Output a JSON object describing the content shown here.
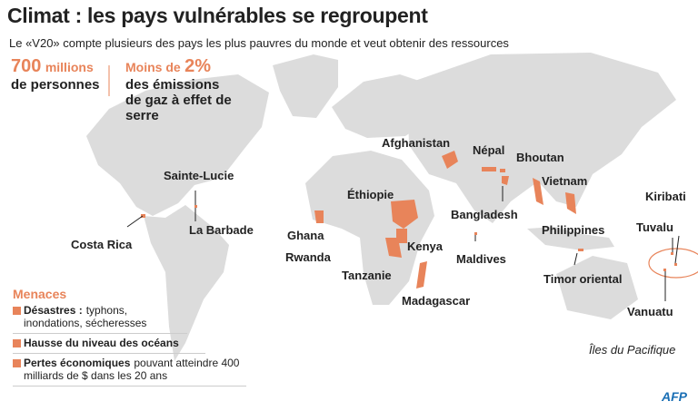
{
  "header": {
    "title": "Climat : les pays vulnérables se regroupent",
    "subtitle": "Le «V20» compte plusieurs des pays les plus pauvres du monde et veut obtenir des ressources"
  },
  "stats": [
    {
      "figure": "700",
      "unit": "millions",
      "text": "de personnes"
    },
    {
      "prefix": "Moins de",
      "figure": "2%",
      "text": "des émissions de gaz à effet de serre"
    }
  ],
  "map": {
    "countries": [
      "Afghanistan",
      "Népal",
      "Bhoutan",
      "Vietnam",
      "Sainte-Lucie",
      "Éthiopie",
      "Kiribati",
      "Tuvalu",
      "La Barbade",
      "Costa Rica",
      "Bangladesh",
      "Philippines",
      "Ghana",
      "Kenya",
      "Rwanda",
      "Maldives",
      "Tanzanie",
      "Timor oriental",
      "Madagascar",
      "Vanuatu"
    ],
    "region_label": "Îles du Pacifique"
  },
  "threats": {
    "heading": "Menaces",
    "items": [
      {
        "bold": "Désastres :",
        "text": "typhons, inondations, sécheresses"
      },
      {
        "bold": "Hausse du niveau des océans"
      },
      {
        "bold": "Pertes économiques",
        "text": "pouvant atteindre 400 milliards de $ dans les 20 ans"
      }
    ]
  },
  "credit": "AFP"
}
